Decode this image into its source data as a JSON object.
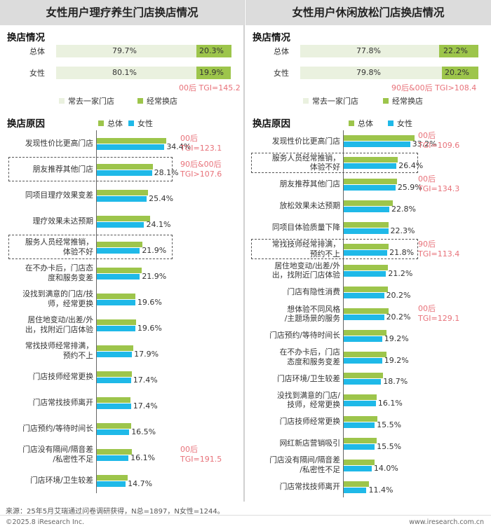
{
  "left": {
    "title": "女性用户理疗养生门店换店情况",
    "status_head": "换店情况",
    "status_rows": [
      {
        "label": "总体",
        "regular": "79.7%",
        "switch": "20.3%",
        "switch_pct": 20.3
      },
      {
        "label": "女性",
        "regular": "80.1%",
        "switch": "19.9%",
        "switch_pct": 19.9
      }
    ],
    "status_tgi": "00后 TGI=145.2",
    "legend_regular": "常去一家门店",
    "legend_switch": "经常换店",
    "reasons_head": "换店原因",
    "legend_total": "总体",
    "legend_female": "女性"
  },
  "right": {
    "title": "女性用户休闲放松门店换店情况",
    "status_head": "换店情况",
    "status_rows": [
      {
        "label": "总体",
        "regular": "77.8%",
        "switch": "22.2%",
        "switch_pct": 22.2
      },
      {
        "label": "女性",
        "regular": "79.8%",
        "switch": "20.2%",
        "switch_pct": 20.2
      }
    ],
    "status_tgi": "90后&00后 TGI>108.4",
    "legend_regular": "常去一家门店",
    "legend_switch": "经常换店",
    "reasons_head": "换店原因",
    "legend_total": "总体",
    "legend_female": "女性"
  },
  "source": "来源：25年5月艾瑞通过问卷调研获得，N总=1897，N女性=1244。",
  "footer_left": "©2025.8 iResearch Inc.",
  "footer_right": "www.iresearch.com.cn",
  "colors": {
    "total": "#9dc54b",
    "female": "#1fb9e8",
    "regular_bg": "#eaf1df",
    "switch": "#9dc54b",
    "tgi": "#e8727a"
  },
  "chart_data": [
    {
      "type": "bar",
      "title": "女性用户理疗养生门店换店情况",
      "categories": [
        "发现性价比更高门店",
        "朋友推荐其他门店",
        "同项目理疗效果变差",
        "理疗效果未达预期",
        "服务人员经常推销，体验不好",
        "在不办卡后，门店态度和服务变差",
        "没找到满意的门店/技师，经常更换",
        "居住地变动/出差/外出，找附近门店体验",
        "常找技师经常排满，预约不上",
        "门店技师经常更换",
        "门店常找技师离开",
        "门店预约/等待时间长",
        "门店没有隔间/隔音差/私密性不足",
        "门店环境/卫生较差"
      ],
      "category_lines": [
        [
          "发现性价比更高门店"
        ],
        [
          "朋友推荐其他门店"
        ],
        [
          "同项目理疗效果变差"
        ],
        [
          "理疗效果未达预期"
        ],
        [
          "服务人员经常推销，",
          "体验不好"
        ],
        [
          "在不办卡后，门店态",
          "度和服务变差"
        ],
        [
          "没找到满意的门店/技",
          "师，经常更换"
        ],
        [
          "居住地变动/出差/外",
          "出，找附近门店体验"
        ],
        [
          "常找技师经常排满，",
          "预约不上"
        ],
        [
          "门店技师经常更换"
        ],
        [
          "门店常找技师离开"
        ],
        [
          "门店预约/等待时间长"
        ],
        [
          "门店没有隔间/隔音差",
          "/私密性不足"
        ],
        [
          "门店环境/卫生较差"
        ]
      ],
      "series": [
        {
          "name": "总体",
          "values": [
            35.2,
            28.6,
            26.0,
            27.0,
            23.2,
            23.0,
            19.8,
            20.0,
            18.4,
            17.8,
            17.2,
            17.6,
            17.8,
            15.6
          ]
        },
        {
          "name": "女性",
          "values": [
            34.4,
            28.1,
            25.4,
            24.1,
            21.9,
            21.9,
            19.6,
            19.6,
            17.9,
            17.4,
            17.4,
            16.5,
            16.1,
            14.7
          ]
        }
      ],
      "value_labels": [
        "34.4%",
        "28.1%",
        "25.4%",
        "24.1%",
        "21.9%",
        "21.9%",
        "19.6%",
        "19.6%",
        "17.9%",
        "17.4%",
        "17.4%",
        "16.5%",
        "16.1%",
        "14.7%"
      ],
      "annotations": [
        {
          "index": 0,
          "lines": [
            "00后",
            "TGI=123.1"
          ]
        },
        {
          "index": 1,
          "lines": [
            "90后&00后",
            "TGI>107.6"
          ]
        },
        {
          "index": 12,
          "lines": [
            "00后",
            "TGI=191.5"
          ]
        }
      ],
      "highlighted": [
        1,
        4
      ],
      "xlim": [
        0,
        40
      ]
    },
    {
      "type": "bar",
      "title": "女性用户休闲放松门店换店情况",
      "categories": [
        "发现性价比更高门店",
        "服务人员经常推销，体验不好",
        "朋友推荐其他门店",
        "放松效果未达预期",
        "同项目体验质量下降",
        "常找技师经常排满，预约不上",
        "居住地变动/出差/外出，找附近门店体验",
        "门店有隐性消费",
        "想体验不同风格/主题场景的服务",
        "门店预约/等待时间长",
        "在不办卡后，门店态度和服务变差",
        "门店环境/卫生较差",
        "没找到满意的门店/技师，经常更换",
        "门店技师经常更换",
        "网红新店营销吸引",
        "门店没有隔间/隔音差/私密性不足",
        "门店常找技师离开"
      ],
      "category_lines": [
        [
          "发现性价比更高门店"
        ],
        [
          "服务人员经常推销，",
          "体验不好"
        ],
        [
          "朋友推荐其他门店"
        ],
        [
          "放松效果未达预期"
        ],
        [
          "同项目体验质量下降"
        ],
        [
          "常找技师经常排满，",
          "预约不上"
        ],
        [
          "居住地变动/出差/外",
          "出，找附近门店体验"
        ],
        [
          "门店有隐性消费"
        ],
        [
          "想体验不同风格",
          "/主题场景的服务"
        ],
        [
          "门店预约/等待时间长"
        ],
        [
          "在不办卡后，门店",
          "态度和服务变差"
        ],
        [
          "门店环境/卫生较差"
        ],
        [
          "没找到满意的门店/",
          "技师，经常更换"
        ],
        [
          "门店技师经常更换"
        ],
        [
          "网红新店营销吸引"
        ],
        [
          "门店没有隔间/隔音差",
          "/私密性不足"
        ],
        [
          "门店常找技师离开"
        ]
      ],
      "series": [
        {
          "name": "总体",
          "values": [
            35.4,
            27.0,
            26.6,
            24.6,
            22.6,
            22.6,
            22.2,
            22.0,
            22.4,
            21.4,
            21.4,
            19.6,
            16.6,
            16.8,
            16.4,
            15.6,
            12.8
          ]
        },
        {
          "name": "女性",
          "values": [
            33.2,
            26.4,
            25.9,
            22.8,
            22.3,
            21.8,
            21.2,
            20.2,
            20.2,
            19.2,
            19.2,
            18.7,
            16.1,
            15.5,
            15.5,
            14.0,
            11.4
          ]
        }
      ],
      "value_labels": [
        "33.2%",
        "26.4%",
        "25.9%",
        "22.8%",
        "22.3%",
        "21.8%",
        "21.2%",
        "20.2%",
        "20.2%",
        "19.2%",
        "19.2%",
        "18.7%",
        "16.1%",
        "15.5%",
        "15.5%",
        "14.0%",
        "11.4%"
      ],
      "annotations": [
        {
          "index": 0,
          "lines": [
            "00后",
            "TGI=109.6"
          ]
        },
        {
          "index": 2,
          "lines": [
            "00后",
            "TGI=134.3"
          ]
        },
        {
          "index": 5,
          "lines": [
            "90后",
            "TGI=113.4"
          ]
        },
        {
          "index": 8,
          "lines": [
            "00后",
            "TGI=129.1"
          ]
        }
      ],
      "highlighted": [
        1,
        5
      ],
      "xlim": [
        0,
        40
      ]
    }
  ]
}
